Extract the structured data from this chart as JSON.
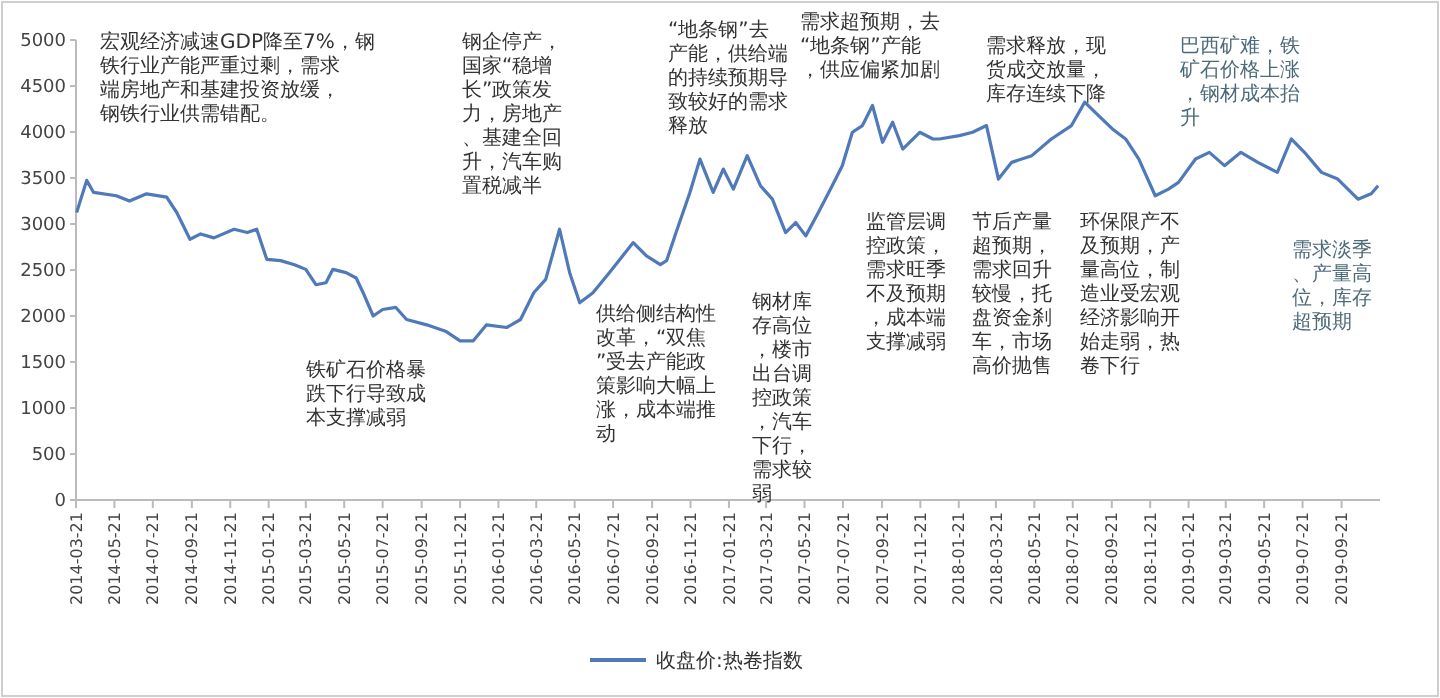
{
  "chart_data": {
    "type": "line",
    "legend": "bottom",
    "grid": false,
    "x": [
      "2014-03-22",
      "2014-04-07",
      "2014-04-18",
      "2014-05-24",
      "2014-06-14",
      "2014-07-11",
      "2014-08-12",
      "2014-08-28",
      "2014-09-18",
      "2014-10-05",
      "2014-10-26",
      "2014-11-27",
      "2014-12-18",
      "2015-01-02",
      "2015-01-18",
      "2015-02-09",
      "2015-03-03",
      "2015-03-21",
      "2015-04-06",
      "2015-04-22",
      "2015-05-03",
      "2015-05-24",
      "2015-06-09",
      "2015-06-20",
      "2015-07-06",
      "2015-07-21",
      "2015-08-11",
      "2015-08-28",
      "2015-09-29",
      "2015-10-30",
      "2015-11-21",
      "2015-12-12",
      "2016-01-02",
      "2016-02-03",
      "2016-02-25",
      "2016-03-17",
      "2016-04-05",
      "2016-04-27",
      "2016-05-13",
      "2016-05-29",
      "2016-06-19",
      "2016-07-15",
      "2016-08-22",
      "2016-09-12",
      "2016-10-04",
      "2016-10-14",
      "2016-10-29",
      "2016-11-20",
      "2016-12-06",
      "2016-12-27",
      "2017-01-12",
      "2017-01-28",
      "2017-02-19",
      "2017-03-12",
      "2017-03-31",
      "2017-04-21",
      "2017-05-07",
      "2017-05-23",
      "2017-06-12",
      "2017-07-04",
      "2017-07-20",
      "2017-08-05",
      "2017-08-21",
      "2017-09-06",
      "2017-09-22",
      "2017-10-08",
      "2017-10-24",
      "2017-11-20",
      "2017-12-11",
      "2017-12-21",
      "2018-01-22",
      "2018-02-12",
      "2018-03-06",
      "2018-03-25",
      "2018-04-15",
      "2018-05-17",
      "2018-06-17",
      "2018-07-19",
      "2018-08-09",
      "2018-08-31",
      "2018-09-22",
      "2018-10-13",
      "2018-11-03",
      "2018-11-29",
      "2018-12-20",
      "2019-01-05",
      "2019-02-01",
      "2019-02-23",
      "2019-03-19",
      "2019-04-14",
      "2019-05-11",
      "2019-06-11",
      "2019-07-03",
      "2019-07-24",
      "2019-08-20",
      "2019-09-15",
      "2019-10-17",
      "2019-11-07",
      "2019-11-18"
    ],
    "series": [
      {
        "name": "收盘价:热卷指数",
        "color": "#4f79b8",
        "values": [
          3125,
          3474,
          3343,
          3307,
          3249,
          3328,
          3292,
          3125,
          2834,
          2892,
          2849,
          2943,
          2907,
          2943,
          2616,
          2602,
          2558,
          2507,
          2340,
          2362,
          2507,
          2471,
          2413,
          2253,
          2000,
          2071,
          2093,
          1962,
          1904,
          1831,
          1730,
          1730,
          1904,
          1875,
          1962,
          2253,
          2398,
          2943,
          2471,
          2144,
          2253,
          2471,
          2798,
          2653,
          2558,
          2602,
          2907,
          3343,
          3706,
          3343,
          3597,
          3379,
          3743,
          3416,
          3270,
          2907,
          3016,
          2871,
          3125,
          3416,
          3634,
          3997,
          4070,
          4288,
          3888,
          4106,
          3815,
          3997,
          3924,
          3924,
          3961,
          3997,
          4070,
          3488,
          3670,
          3743,
          3924,
          4070,
          4324,
          4179,
          4033,
          3924,
          3706,
          3307,
          3379,
          3452,
          3706,
          3779,
          3634,
          3779,
          3670,
          3561,
          3924,
          3779,
          3561,
          3488,
          3270,
          3328,
          3416
        ]
      }
    ],
    "xlim": [
      "2014-03-21",
      "2019-11-21"
    ],
    "xticks": [
      "2014-03-21",
      "2014-05-21",
      "2014-07-21",
      "2014-09-21",
      "2014-11-21",
      "2015-01-21",
      "2015-03-21",
      "2015-05-21",
      "2015-07-21",
      "2015-09-21",
      "2015-11-21",
      "2016-01-21",
      "2016-03-21",
      "2016-05-21",
      "2016-07-21",
      "2016-09-21",
      "2016-11-21",
      "2017-01-21",
      "2017-03-21",
      "2017-05-21",
      "2017-07-21",
      "2017-09-21",
      "2017-11-21",
      "2018-01-21",
      "2018-03-21",
      "2018-05-21",
      "2018-07-21",
      "2018-09-21",
      "2018-11-21",
      "2019-01-21",
      "2019-03-21",
      "2019-05-21",
      "2019-07-21",
      "2019-09-21"
    ],
    "ylim": [
      0,
      5000
    ],
    "yticks": [
      0,
      500,
      1000,
      1500,
      2000,
      2500,
      3000,
      3500,
      4000,
      4500,
      5000
    ],
    "annotations": [
      "宏观经济减速GDP降至7%，钢铁行业产能严重过剩，需求端房地产和基建投资放缓，钢铁行业供需错配。",
      "铁矿石价格暴跌下行导致成本支撑减弱",
      "钢企停产，国家“稳增长”政策发力，房地产、基建全回升，汽车购置税减半",
      "供给侧结构性改革，“双焦”受去产能政策影响大幅上涨，成本端推动",
      "“地条钢”去产能，供给端的持续预期导致较好的需求释放",
      "钢材库存高位，楼市出台调控政策，汽车下行，需求较弱",
      "需求超预期，去“地条钢”产能，供应偏紧加剧",
      "监管层调控政策，需求旺季不及预期，成本端支撑减弱",
      "节后产量超预期，需求回升较慢，托盘资金刹车，市场高价抛售",
      "需求释放，现货成交放量，库存连续下降",
      "环保限产不及预期，产量高位，制造业受宏观经济影响开始走弱，热卷下行",
      "巴西矿难，铁矿石价格上涨，钢材成本抬升",
      "需求淡季、产量高位，库存超预期"
    ]
  }
}
